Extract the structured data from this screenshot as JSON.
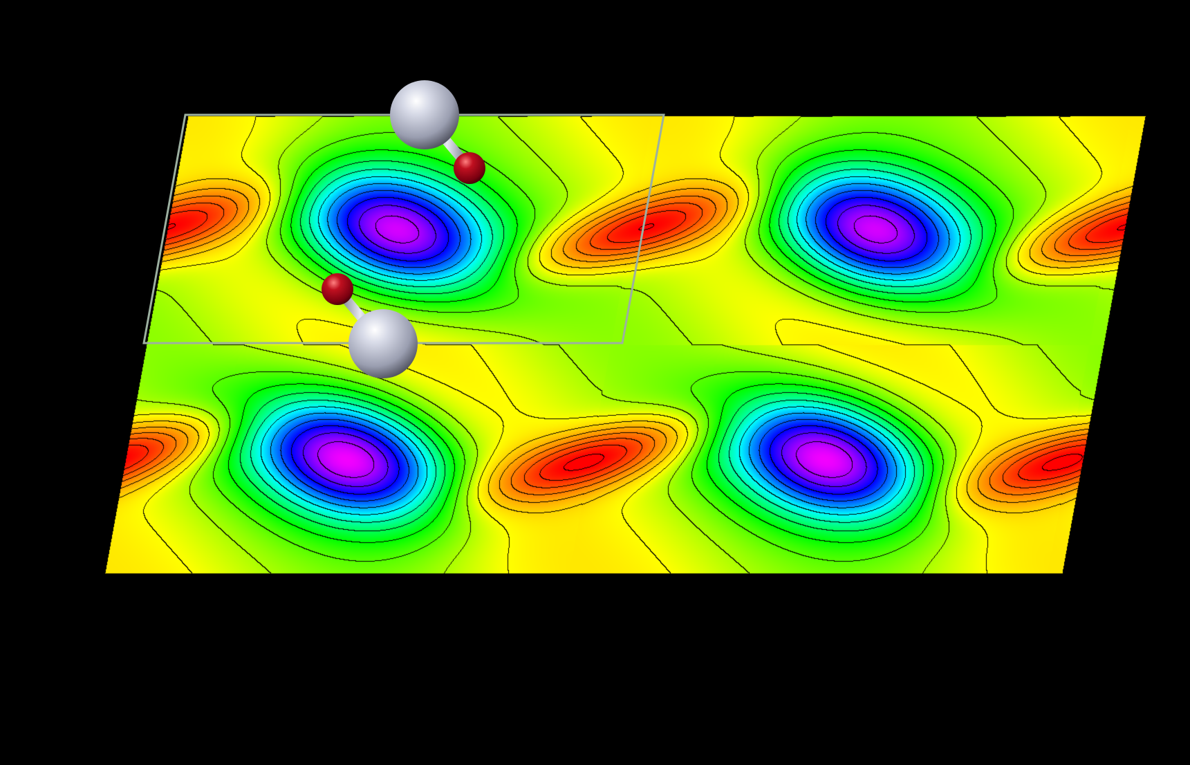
{
  "scene": {
    "background_color": "#000000",
    "view": "contour-map-with-molecular-structure",
    "color_scale": [
      "#ff0000",
      "#ff8000",
      "#ffff00",
      "#00ff00",
      "#00ffff",
      "#0000ff",
      "#ff00ff"
    ],
    "contour_line_color": "#000000",
    "cell_outline_color": "#9cb0a0",
    "unit_cells_shown": "2 x 2",
    "minima_per_cell": 1,
    "maxima_per_cell": 1
  },
  "atoms": {
    "large_atom_color": "#b4b8c8",
    "small_atom_color": "#b00018",
    "bond_color": "#b4b8c8",
    "large_atom_icon": "sphere-icon",
    "small_atom_icon": "sphere-icon",
    "count_large": 2,
    "count_small": 2
  }
}
